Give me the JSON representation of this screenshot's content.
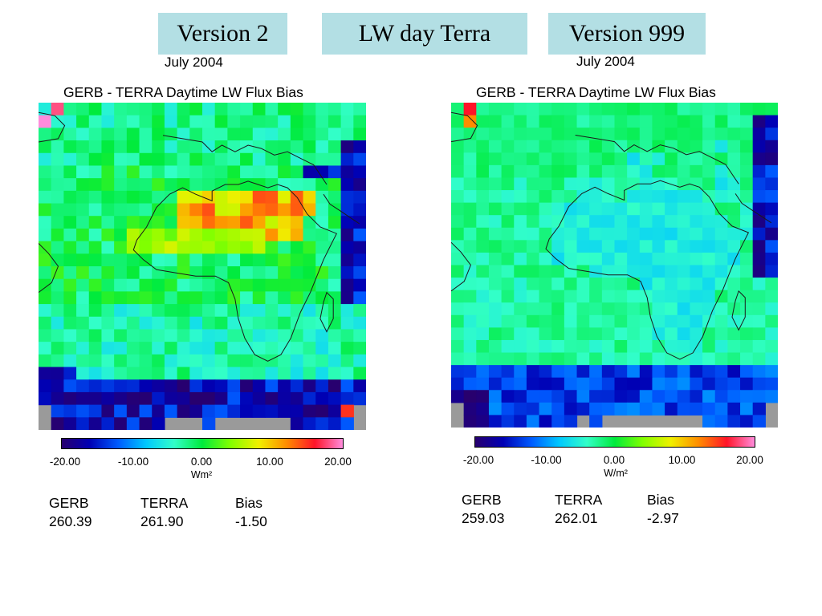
{
  "header": {
    "left_label": "Version 2",
    "center_label": "LW day Terra",
    "right_label": "Version 999"
  },
  "chart_data": [
    {
      "type": "heatmap",
      "subtitle": "July 2004",
      "title": "GERB - TERRA Daytime LW Flux Bias",
      "colorbar": {
        "range": [
          -20,
          20
        ],
        "ticks": [
          "-20.00",
          "-10.00",
          "0.00",
          "10.00",
          "20.00"
        ],
        "unit": "Wm²"
      },
      "stats": {
        "headers": [
          "GERB",
          "TERRA",
          "Bias"
        ],
        "values": [
          "260.39",
          "261.90",
          "-1.50"
        ]
      },
      "anomalies": [
        {
          "region": "NW corner",
          "values": [
            18,
            13
          ]
        },
        {
          "region": "Sahara / Arabia",
          "values": [
            6,
            7,
            8,
            9,
            10,
            11,
            12,
            13,
            15
          ]
        },
        {
          "region": "Sahel band",
          "values": [
            3,
            4,
            5,
            6
          ]
        },
        {
          "region": "Southern edge",
          "values": [
            -15,
            -18,
            -20,
            15
          ]
        },
        {
          "region": "East edge",
          "values": [
            -12,
            -16,
            -19
          ]
        }
      ]
    },
    {
      "type": "heatmap",
      "subtitle": "July 2004",
      "title": "GERB - TERRA Daytime LW Flux Bias",
      "colorbar": {
        "range": [
          -20,
          20
        ],
        "ticks": [
          "-20.00",
          "-10.00",
          "0.00",
          "10.00",
          "20.00"
        ],
        "unit": "W/m²"
      },
      "stats": {
        "headers": [
          "GERB",
          "TERRA",
          "Bias"
        ],
        "values": [
          "259.03",
          "262.01",
          "-2.97"
        ]
      },
      "anomalies": [
        {
          "region": "NW corner",
          "values": [
            16,
            12
          ]
        },
        {
          "region": "Africa land",
          "values": [
            -3,
            -4,
            -5
          ]
        },
        {
          "region": "Southern edge",
          "values": [
            -14,
            -17,
            -20
          ]
        },
        {
          "region": "East edge",
          "values": [
            -14,
            -17,
            -19
          ]
        }
      ]
    }
  ]
}
